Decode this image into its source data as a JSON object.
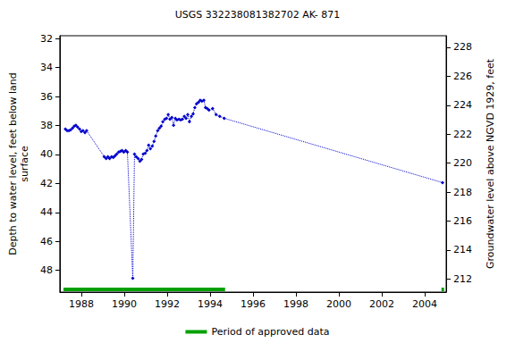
{
  "chart_data": {
    "type": "line",
    "title": "USGS 332238081382702 AK- 871",
    "y_label": "Depth to water level, feet below land\nsurface",
    "y2_label": "Groundwater level above NGVD 1929, feet",
    "xlim": [
      1987.0,
      2005.0
    ],
    "xticks": [
      1988,
      1990,
      1992,
      1994,
      1996,
      1998,
      2000,
      2002,
      2004
    ],
    "ylim": [
      31.8,
      49.5
    ],
    "yticks": [
      32,
      34,
      36,
      38,
      40,
      42,
      44,
      46,
      48
    ],
    "y2lim": [
      211.1,
      228.8
    ],
    "y2ticks": [
      212,
      214,
      216,
      218,
      220,
      222,
      224,
      226,
      228
    ],
    "grid": false,
    "series": [
      {
        "color": "#0000cc",
        "marker": "diamond",
        "line_style": "dotted",
        "x": [
          1987.26,
          1987.34,
          1987.42,
          1987.5,
          1987.59,
          1987.67,
          1987.75,
          1987.83,
          1987.92,
          1988.0,
          1988.08,
          1988.17,
          1988.25,
          1989.07,
          1989.16,
          1989.24,
          1989.32,
          1989.41,
          1989.49,
          1989.57,
          1989.65,
          1989.74,
          1989.82,
          1989.9,
          1989.98,
          1990.07,
          1990.15,
          1990.4,
          1990.48,
          1990.56,
          1990.65,
          1990.73,
          1990.81,
          1990.89,
          1990.98,
          1991.06,
          1991.14,
          1991.22,
          1991.31,
          1991.39,
          1991.47,
          1991.56,
          1991.64,
          1991.72,
          1991.8,
          1991.89,
          1991.97,
          1992.05,
          1992.13,
          1992.22,
          1992.3,
          1992.38,
          1992.46,
          1992.55,
          1992.63,
          1992.71,
          1992.8,
          1992.88,
          1992.96,
          1993.04,
          1993.13,
          1993.21,
          1993.29,
          1993.37,
          1993.46,
          1993.54,
          1993.62,
          1993.71,
          1993.79,
          1993.87,
          1993.95,
          1994.12,
          1994.28,
          1994.45,
          1994.66,
          2004.83
        ],
        "values": [
          38.24,
          38.36,
          38.36,
          38.3,
          38.18,
          38.05,
          37.99,
          38.11,
          38.24,
          38.42,
          38.36,
          38.49,
          38.36,
          40.15,
          40.28,
          40.15,
          40.28,
          40.15,
          40.21,
          40.09,
          39.97,
          39.84,
          39.78,
          39.72,
          39.84,
          39.72,
          39.84,
          48.55,
          39.97,
          40.15,
          40.28,
          40.46,
          40.34,
          39.97,
          39.91,
          39.72,
          39.35,
          39.6,
          39.41,
          39.1,
          38.73,
          38.36,
          38.18,
          38.05,
          37.74,
          37.56,
          37.5,
          37.25,
          37.56,
          37.44,
          37.99,
          37.5,
          37.62,
          37.56,
          37.62,
          37.56,
          37.37,
          37.5,
          37.25,
          37.74,
          37.37,
          37.19,
          36.76,
          36.51,
          36.39,
          36.26,
          36.32,
          36.26,
          36.76,
          36.82,
          36.94,
          36.82,
          37.25,
          37.37,
          37.5,
          41.94
        ]
      }
    ],
    "approved_periods": {
      "name": "Period of approved data",
      "color": "#00a000",
      "ranges": [
        [
          1987.17,
          1994.7
        ],
        [
          2004.78,
          2004.86
        ]
      ]
    }
  }
}
